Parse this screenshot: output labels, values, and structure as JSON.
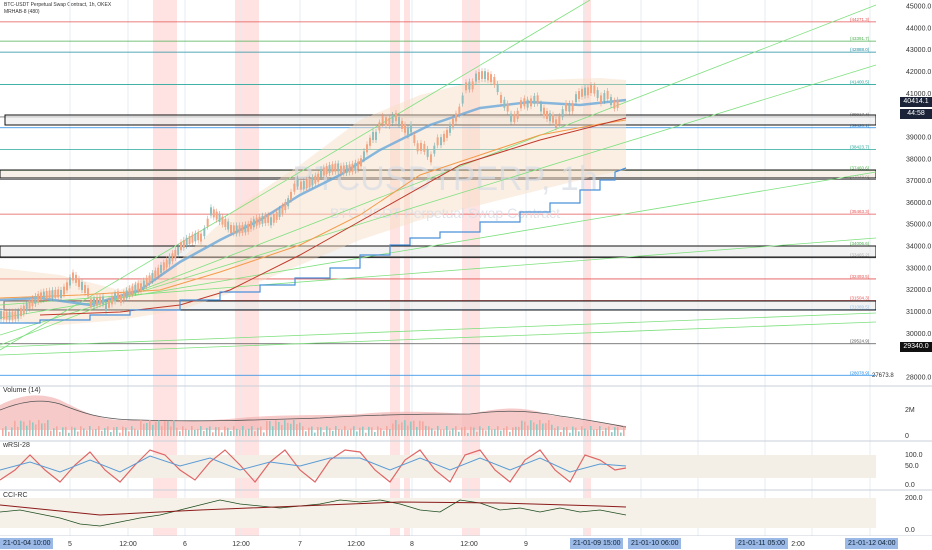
{
  "header": {
    "symbol_line": "BTC-USDT Perpetual Swap Contract, 1h, OKEX",
    "indicator_line": "MRHAB-8 (480)"
  },
  "watermark": {
    "symbol": "BTCUSDTPERP, 1h",
    "description": "BTC-USDT Perpetual Swap Contract"
  },
  "price_axis": {
    "ticks": [
      "45000.0",
      "44000.0",
      "43000.0",
      "42000.0",
      "41000.0",
      "39000.0",
      "38000.0",
      "37000.0",
      "36000.0",
      "35000.0",
      "34000.0",
      "33000.0",
      "32000.0",
      "31000.0",
      "30000.0",
      "28000.0"
    ],
    "last_price": "40414.1",
    "countdown": "44:58",
    "cursor_price": "29340.0",
    "low_price": "27673.8"
  },
  "levels": [
    {
      "label": "(44271.3)",
      "color": "#e55353",
      "price": 44271.3
    },
    {
      "label": "(43391.7)",
      "color": "#4caf50",
      "price": 43391.7
    },
    {
      "label": "(42888.0)",
      "color": "#1e8ea1",
      "price": 42888.0
    },
    {
      "label": "(41400.5)",
      "color": "#26a69a",
      "price": 41400.5
    },
    {
      "label": "(39917.4)",
      "color": "#777777",
      "price": 39917.4
    },
    {
      "label": "(39420.1)",
      "color": "#1e88e5",
      "price": 39420.1
    },
    {
      "label": "(38423.7)",
      "color": "#26a69a",
      "price": 38423.7
    },
    {
      "label": "(37460.6)",
      "color": "#4caf50",
      "price": 37460.6
    },
    {
      "label": "(37049.0)",
      "color": "#555555",
      "price": 37049.0
    },
    {
      "label": "(35463.3)",
      "color": "#e55353",
      "price": 35463.3
    },
    {
      "label": "(34006.6)",
      "color": "#4caf50",
      "price": 34006.6
    },
    {
      "label": "(33465.2)",
      "color": "#555555",
      "price": 33465.2
    },
    {
      "label": "(32493.5)",
      "color": "#e55353",
      "price": 32493.5
    },
    {
      "label": "(31504.3)",
      "color": "#e55353",
      "price": 31504.3
    },
    {
      "label": "(31089.5)",
      "color": "#1e88e5",
      "price": 31089.5
    },
    {
      "label": "(29524.9)",
      "color": "#555555",
      "price": 29524.9
    },
    {
      "label": "(28078.9)",
      "color": "#1e88e5",
      "price": 28078.9
    }
  ],
  "volume_panel": {
    "title": "Volume (14)",
    "ticks": [
      "2M",
      "0"
    ]
  },
  "rsi_panel": {
    "title": "wRSI-28",
    "ticks": [
      "100.0",
      "50.0",
      "0.0"
    ]
  },
  "cci_panel": {
    "title": "CCI-RC",
    "ticks": [
      "200.0",
      "0.0"
    ]
  },
  "time_axis": {
    "labels": [
      "5",
      "12:00",
      "6",
      "12:00",
      "7",
      "12:00",
      "8",
      "12:00",
      "9",
      "2:00"
    ],
    "chips": [
      "21-01-04  10:00",
      "21-01-09  15:00",
      "21-01-10  06:00",
      "21-01-11  05:00",
      "21-01-12  04:00"
    ]
  },
  "colors": {
    "up_candle": "#f4a582",
    "down_candle": "#8fbfbf",
    "grid": "#e6ecf2",
    "session_shade": "#ffdada",
    "last_price_tag": "#1a2338"
  }
}
